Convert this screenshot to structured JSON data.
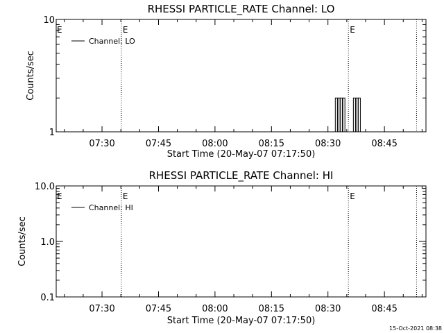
{
  "timestamp": "15-Oct-2021 08:38",
  "chart_data": [
    {
      "type": "line",
      "title": "RHESSI PARTICLE_RATE Channel: LO",
      "xlabel": "Start Time (20-May-07 07:17:50)",
      "ylabel": "Counts/sec",
      "y_scale": "log",
      "ylim": [
        1,
        10
      ],
      "y_ticks": [
        {
          "value": 1,
          "label": "1"
        },
        {
          "value": 10,
          "label": "10"
        }
      ],
      "x_unit": "minutes since 07:17:50",
      "xlim": [
        0,
        98.2
      ],
      "x_ticks": [
        {
          "value": 12.17,
          "label": "07:30"
        },
        {
          "value": 27.17,
          "label": "07:45"
        },
        {
          "value": 42.17,
          "label": "08:00"
        },
        {
          "value": 57.17,
          "label": "08:15"
        },
        {
          "value": 72.17,
          "label": "08:30"
        },
        {
          "value": 87.17,
          "label": "08:45"
        }
      ],
      "legend": {
        "position": "top-left",
        "label": "Channel: LO"
      },
      "event_lines": [
        {
          "x": 17.3,
          "label": "E"
        },
        {
          "x": 77.6,
          "label": "E"
        },
        {
          "x": 95.7,
          "label": ""
        }
      ],
      "edge_markers": [
        {
          "x": 0,
          "label": "E"
        }
      ],
      "series": [
        {
          "name": "Channel: LO",
          "pulses": [
            74.4,
            75.1,
            75.7,
            76.4,
            79.2,
            79.9,
            80.5
          ]
        }
      ],
      "pulse_level": 2,
      "baseline": 1
    },
    {
      "type": "line",
      "title": "RHESSI PARTICLE_RATE Channel: HI",
      "xlabel": "Start Time (20-May-07 07:17:50)",
      "ylabel": "Counts/sec",
      "y_scale": "log",
      "ylim": [
        0.1,
        10
      ],
      "y_ticks": [
        {
          "value": 0.1,
          "label": "0.1"
        },
        {
          "value": 1,
          "label": "1.0"
        },
        {
          "value": 10,
          "label": "10.0"
        }
      ],
      "x_unit": "minutes since 07:17:50",
      "xlim": [
        0,
        98.2
      ],
      "x_ticks": [
        {
          "value": 12.17,
          "label": "07:30"
        },
        {
          "value": 27.17,
          "label": "07:45"
        },
        {
          "value": 42.17,
          "label": "08:00"
        },
        {
          "value": 57.17,
          "label": "08:15"
        },
        {
          "value": 72.17,
          "label": "08:30"
        },
        {
          "value": 87.17,
          "label": "08:45"
        }
      ],
      "legend": {
        "position": "top-left",
        "label": "Channel: HI"
      },
      "event_lines": [
        {
          "x": 17.3,
          "label": "E"
        },
        {
          "x": 77.6,
          "label": "E"
        },
        {
          "x": 95.7,
          "label": ""
        }
      ],
      "edge_markers": [
        {
          "x": 0,
          "label": "E"
        }
      ],
      "series": [
        {
          "name": "Channel: HI",
          "pulses": []
        }
      ]
    }
  ]
}
